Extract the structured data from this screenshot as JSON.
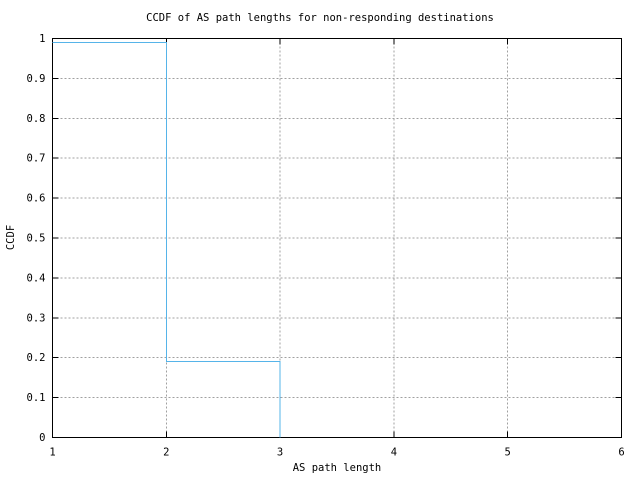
{
  "chart_data": {
    "type": "line",
    "subtype": "ccdf-step",
    "title": "CCDF of AS path lengths for non-responding destinations",
    "xlabel": "AS path length",
    "ylabel": "CCDF",
    "xlim": [
      1,
      6
    ],
    "ylim": [
      0,
      1
    ],
    "xticks": [
      {
        "v": 1,
        "label": "1"
      },
      {
        "v": 2,
        "label": "2"
      },
      {
        "v": 3,
        "label": "3"
      },
      {
        "v": 4,
        "label": "4"
      },
      {
        "v": 5,
        "label": "5"
      },
      {
        "v": 6,
        "label": "6"
      }
    ],
    "yticks": [
      {
        "v": 0,
        "label": "0"
      },
      {
        "v": 0.1,
        "label": "0.1"
      },
      {
        "v": 0.2,
        "label": "0.2"
      },
      {
        "v": 0.3,
        "label": "0.3"
      },
      {
        "v": 0.4,
        "label": "0.4"
      },
      {
        "v": 0.5,
        "label": "0.5"
      },
      {
        "v": 0.6,
        "label": "0.6"
      },
      {
        "v": 0.7,
        "label": "0.7"
      },
      {
        "v": 0.8,
        "label": "0.8"
      },
      {
        "v": 0.9,
        "label": "0.9"
      },
      {
        "v": 1,
        "label": "1"
      }
    ],
    "grid": true,
    "grid_style": "dashed",
    "legend": "none",
    "series": [
      {
        "name": "CCDF of AS path length",
        "color": "#56b4e9",
        "points": [
          [
            1,
            0.99
          ],
          [
            2,
            0.99
          ],
          [
            2,
            0.19
          ],
          [
            3,
            0.19
          ],
          [
            3,
            0
          ]
        ]
      }
    ],
    "colors": {
      "axis": "#000000",
      "grid": "#a0a0a0",
      "text": "#000000",
      "background": "#ffffff"
    }
  }
}
